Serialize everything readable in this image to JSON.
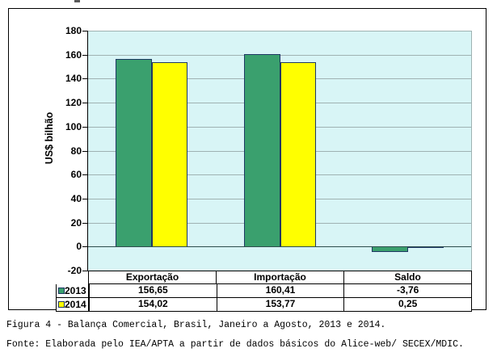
{
  "figure": {
    "caption": "Figura 4 - Balança Comercial, Brasil, Janeiro a Agosto, 2013 e 2014.",
    "source": "Fonte: Elaborada pelo IEA/APTA a partir de dados básicos do Alice-web/ SECEX/MDIC."
  },
  "chart_data": {
    "type": "bar",
    "categories": [
      "Exportação",
      "Importação",
      "Saldo"
    ],
    "series": [
      {
        "name": "2013",
        "color": "#3aa06e",
        "values": [
          156.65,
          160.41,
          -3.76
        ],
        "display": [
          "156,65",
          "160,41",
          "-3,76"
        ]
      },
      {
        "name": "2014",
        "color": "#ffff00",
        "values": [
          154.02,
          153.77,
          0.25
        ],
        "display": [
          "154,02",
          "153,77",
          "0,25"
        ]
      }
    ],
    "ylabel": "US$ bilhão",
    "ylim": [
      -20,
      180
    ],
    "yticks": [
      180,
      160,
      140,
      120,
      100,
      80,
      60,
      40,
      20,
      0,
      -20
    ],
    "grid": true,
    "legend_position": "left-of-data-table",
    "data_table_shown": true,
    "colors": {
      "plot_background": "#d8f5f6",
      "gridline": "#9fb2b2",
      "bar_border": "#1f3864",
      "axis": "#000000",
      "chart_border": "#000000"
    }
  }
}
